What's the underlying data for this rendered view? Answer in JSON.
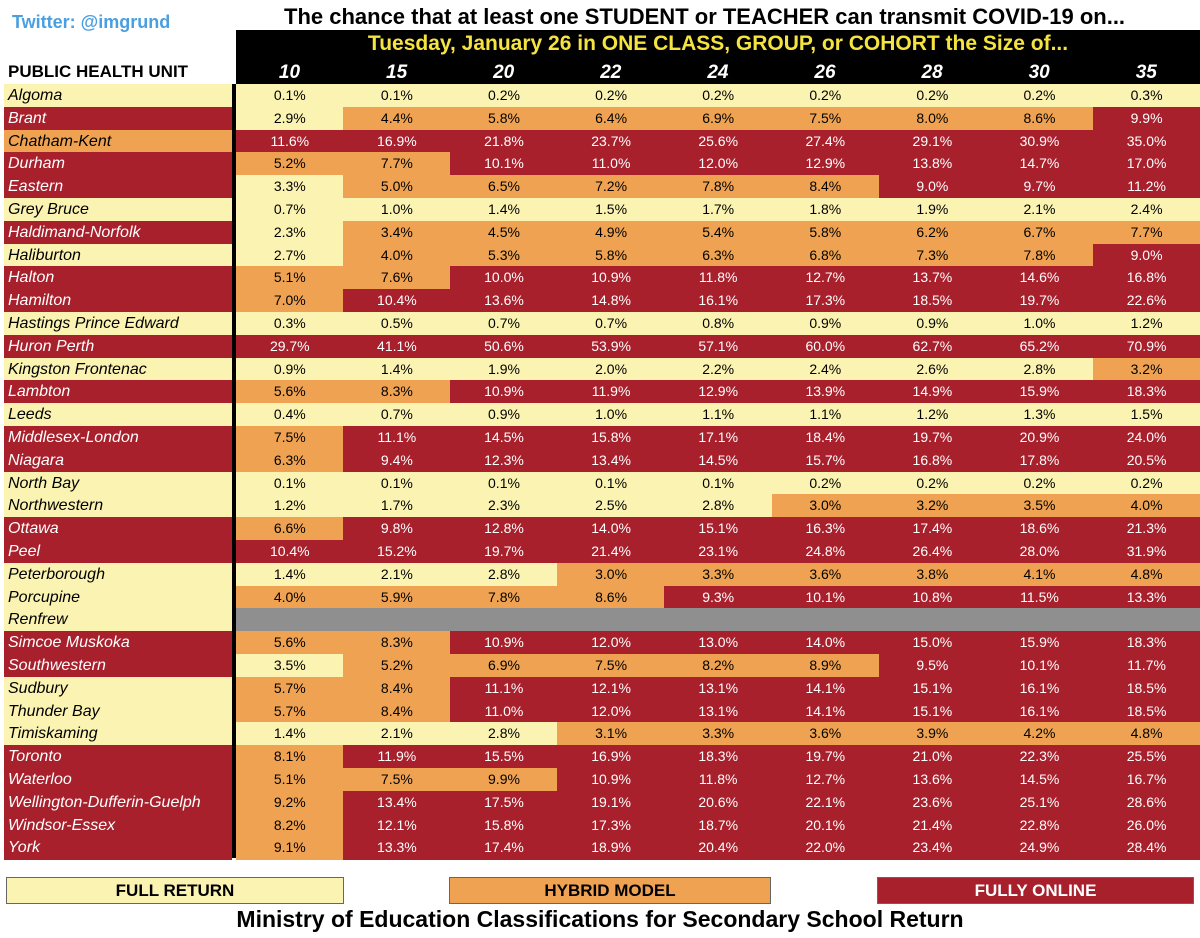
{
  "twitter": "Twitter: @imgrund",
  "title": "The chance that at least one STUDENT or TEACHER can transmit COVID-19 on...",
  "subtitle": "Tuesday, January 26 in ONE CLASS, GROUP, or COHORT the Size of...",
  "phu_header": "PUBLIC HEALTH UNIT",
  "colors": {
    "full_return": "#fbf3b2",
    "hybrid_model": "#efa352",
    "fully_online": "#a7202c",
    "no_data": "#8f8f8f"
  },
  "legend": {
    "full_return": "FULL RETURN",
    "hybrid_model": "HYBRID MODEL",
    "fully_online": "FULLY ONLINE"
  },
  "footer": "Ministry of Education Classifications for Secondary School Return",
  "chart_data": {
    "type": "table",
    "column_headers": [
      "10",
      "15",
      "20",
      "22",
      "24",
      "26",
      "28",
      "30",
      "35"
    ],
    "rows": [
      {
        "unit": "Algoma",
        "cls": "F",
        "values": [
          "0.1%",
          "0.1%",
          "0.2%",
          "0.2%",
          "0.2%",
          "0.2%",
          "0.2%",
          "0.2%",
          "0.3%"
        ],
        "bands": "FFFFFFFFF"
      },
      {
        "unit": "Brant",
        "cls": "O",
        "values": [
          "2.9%",
          "4.4%",
          "5.8%",
          "6.4%",
          "6.9%",
          "7.5%",
          "8.0%",
          "8.6%",
          "9.9%"
        ],
        "bands": "FHHHHHHHO"
      },
      {
        "unit": "Chatham-Kent",
        "cls": "H",
        "values": [
          "11.6%",
          "16.9%",
          "21.8%",
          "23.7%",
          "25.6%",
          "27.4%",
          "29.1%",
          "30.9%",
          "35.0%"
        ],
        "bands": "OOOOOOOOO"
      },
      {
        "unit": "Durham",
        "cls": "O",
        "values": [
          "5.2%",
          "7.7%",
          "10.1%",
          "11.0%",
          "12.0%",
          "12.9%",
          "13.8%",
          "14.7%",
          "17.0%"
        ],
        "bands": "HHOOOOOOO"
      },
      {
        "unit": "Eastern",
        "cls": "O",
        "values": [
          "3.3%",
          "5.0%",
          "6.5%",
          "7.2%",
          "7.8%",
          "8.4%",
          "9.0%",
          "9.7%",
          "11.2%"
        ],
        "bands": "FHHHHHOOO"
      },
      {
        "unit": "Grey Bruce",
        "cls": "F",
        "values": [
          "0.7%",
          "1.0%",
          "1.4%",
          "1.5%",
          "1.7%",
          "1.8%",
          "1.9%",
          "2.1%",
          "2.4%"
        ],
        "bands": "FFFFFFFFF"
      },
      {
        "unit": "Haldimand-Norfolk",
        "cls": "O",
        "values": [
          "2.3%",
          "3.4%",
          "4.5%",
          "4.9%",
          "5.4%",
          "5.8%",
          "6.2%",
          "6.7%",
          "7.7%"
        ],
        "bands": "FHHHHHHHH"
      },
      {
        "unit": "Haliburton",
        "cls": "F",
        "values": [
          "2.7%",
          "4.0%",
          "5.3%",
          "5.8%",
          "6.3%",
          "6.8%",
          "7.3%",
          "7.8%",
          "9.0%"
        ],
        "bands": "FHHHHHHHO"
      },
      {
        "unit": "Halton",
        "cls": "O",
        "values": [
          "5.1%",
          "7.6%",
          "10.0%",
          "10.9%",
          "11.8%",
          "12.7%",
          "13.7%",
          "14.6%",
          "16.8%"
        ],
        "bands": "HHOOOOOOO"
      },
      {
        "unit": "Hamilton",
        "cls": "O",
        "values": [
          "7.0%",
          "10.4%",
          "13.6%",
          "14.8%",
          "16.1%",
          "17.3%",
          "18.5%",
          "19.7%",
          "22.6%"
        ],
        "bands": "HOOOOOOOO"
      },
      {
        "unit": "Hastings Prince Edward",
        "cls": "F",
        "values": [
          "0.3%",
          "0.5%",
          "0.7%",
          "0.7%",
          "0.8%",
          "0.9%",
          "0.9%",
          "1.0%",
          "1.2%"
        ],
        "bands": "FFFFFFFFF"
      },
      {
        "unit": "Huron Perth",
        "cls": "O",
        "values": [
          "29.7%",
          "41.1%",
          "50.6%",
          "53.9%",
          "57.1%",
          "60.0%",
          "62.7%",
          "65.2%",
          "70.9%"
        ],
        "bands": "OOOOOOOOO"
      },
      {
        "unit": "Kingston Frontenac",
        "cls": "F",
        "values": [
          "0.9%",
          "1.4%",
          "1.9%",
          "2.0%",
          "2.2%",
          "2.4%",
          "2.6%",
          "2.8%",
          "3.2%"
        ],
        "bands": "FFFFFFFFH"
      },
      {
        "unit": "Lambton",
        "cls": "O",
        "values": [
          "5.6%",
          "8.3%",
          "10.9%",
          "11.9%",
          "12.9%",
          "13.9%",
          "14.9%",
          "15.9%",
          "18.3%"
        ],
        "bands": "HHOOOOOOO"
      },
      {
        "unit": "Leeds",
        "cls": "F",
        "values": [
          "0.4%",
          "0.7%",
          "0.9%",
          "1.0%",
          "1.1%",
          "1.1%",
          "1.2%",
          "1.3%",
          "1.5%"
        ],
        "bands": "FFFFFFFFF"
      },
      {
        "unit": "Middlesex-London",
        "cls": "O",
        "values": [
          "7.5%",
          "11.1%",
          "14.5%",
          "15.8%",
          "17.1%",
          "18.4%",
          "19.7%",
          "20.9%",
          "24.0%"
        ],
        "bands": "HOOOOOOOO"
      },
      {
        "unit": "Niagara",
        "cls": "O",
        "values": [
          "6.3%",
          "9.4%",
          "12.3%",
          "13.4%",
          "14.5%",
          "15.7%",
          "16.8%",
          "17.8%",
          "20.5%"
        ],
        "bands": "HOOOOOOOO"
      },
      {
        "unit": "North Bay",
        "cls": "F",
        "values": [
          "0.1%",
          "0.1%",
          "0.1%",
          "0.1%",
          "0.1%",
          "0.2%",
          "0.2%",
          "0.2%",
          "0.2%"
        ],
        "bands": "FFFFFFFFF"
      },
      {
        "unit": "Northwestern",
        "cls": "F",
        "values": [
          "1.2%",
          "1.7%",
          "2.3%",
          "2.5%",
          "2.8%",
          "3.0%",
          "3.2%",
          "3.5%",
          "4.0%"
        ],
        "bands": "FFFFFHHHH"
      },
      {
        "unit": "Ottawa",
        "cls": "O",
        "values": [
          "6.6%",
          "9.8%",
          "12.8%",
          "14.0%",
          "15.1%",
          "16.3%",
          "17.4%",
          "18.6%",
          "21.3%"
        ],
        "bands": "HOOOOOOOO"
      },
      {
        "unit": "Peel",
        "cls": "O",
        "values": [
          "10.4%",
          "15.2%",
          "19.7%",
          "21.4%",
          "23.1%",
          "24.8%",
          "26.4%",
          "28.0%",
          "31.9%"
        ],
        "bands": "OOOOOOOOO"
      },
      {
        "unit": "Peterborough",
        "cls": "F",
        "values": [
          "1.4%",
          "2.1%",
          "2.8%",
          "3.0%",
          "3.3%",
          "3.6%",
          "3.8%",
          "4.1%",
          "4.8%"
        ],
        "bands": "FFFHHHHHH"
      },
      {
        "unit": "Porcupine",
        "cls": "F",
        "values": [
          "4.0%",
          "5.9%",
          "7.8%",
          "8.6%",
          "9.3%",
          "10.1%",
          "10.8%",
          "11.5%",
          "13.3%"
        ],
        "bands": "HHHHOOOOO"
      },
      {
        "unit": "Renfrew",
        "cls": "F",
        "values": [
          "",
          "",
          "",
          "",
          "",
          "",
          "",
          "",
          ""
        ],
        "bands": "NNNNNNNNN"
      },
      {
        "unit": "Simcoe Muskoka",
        "cls": "O",
        "values": [
          "5.6%",
          "8.3%",
          "10.9%",
          "12.0%",
          "13.0%",
          "14.0%",
          "15.0%",
          "15.9%",
          "18.3%"
        ],
        "bands": "HHOOOOOOO"
      },
      {
        "unit": "Southwestern",
        "cls": "O",
        "values": [
          "3.5%",
          "5.2%",
          "6.9%",
          "7.5%",
          "8.2%",
          "8.9%",
          "9.5%",
          "10.1%",
          "11.7%"
        ],
        "bands": "FHHHHHOOO"
      },
      {
        "unit": "Sudbury",
        "cls": "F",
        "values": [
          "5.7%",
          "8.4%",
          "11.1%",
          "12.1%",
          "13.1%",
          "14.1%",
          "15.1%",
          "16.1%",
          "18.5%"
        ],
        "bands": "HHOOOOOOO"
      },
      {
        "unit": "Thunder Bay",
        "cls": "F",
        "values": [
          "5.7%",
          "8.4%",
          "11.0%",
          "12.0%",
          "13.1%",
          "14.1%",
          "15.1%",
          "16.1%",
          "18.5%"
        ],
        "bands": "HHOOOOOOO"
      },
      {
        "unit": "Timiskaming",
        "cls": "F",
        "values": [
          "1.4%",
          "2.1%",
          "2.8%",
          "3.1%",
          "3.3%",
          "3.6%",
          "3.9%",
          "4.2%",
          "4.8%"
        ],
        "bands": "FFFHHHHHH"
      },
      {
        "unit": "Toronto",
        "cls": "O",
        "values": [
          "8.1%",
          "11.9%",
          "15.5%",
          "16.9%",
          "18.3%",
          "19.7%",
          "21.0%",
          "22.3%",
          "25.5%"
        ],
        "bands": "HOOOOOOOO"
      },
      {
        "unit": "Waterloo",
        "cls": "O",
        "values": [
          "5.1%",
          "7.5%",
          "9.9%",
          "10.9%",
          "11.8%",
          "12.7%",
          "13.6%",
          "14.5%",
          "16.7%"
        ],
        "bands": "HHHOOOOOO"
      },
      {
        "unit": "Wellington-Dufferin-Guelph",
        "cls": "O",
        "values": [
          "9.2%",
          "13.4%",
          "17.5%",
          "19.1%",
          "20.6%",
          "22.1%",
          "23.6%",
          "25.1%",
          "28.6%"
        ],
        "bands": "HOOOOOOOO"
      },
      {
        "unit": "Windsor-Essex",
        "cls": "O",
        "values": [
          "8.2%",
          "12.1%",
          "15.8%",
          "17.3%",
          "18.7%",
          "20.1%",
          "21.4%",
          "22.8%",
          "26.0%"
        ],
        "bands": "HOOOOOOOO"
      },
      {
        "unit": "York",
        "cls": "O",
        "values": [
          "9.1%",
          "13.3%",
          "17.4%",
          "18.9%",
          "20.4%",
          "22.0%",
          "23.4%",
          "24.9%",
          "28.4%"
        ],
        "bands": "HOOOOOOOO"
      }
    ]
  }
}
